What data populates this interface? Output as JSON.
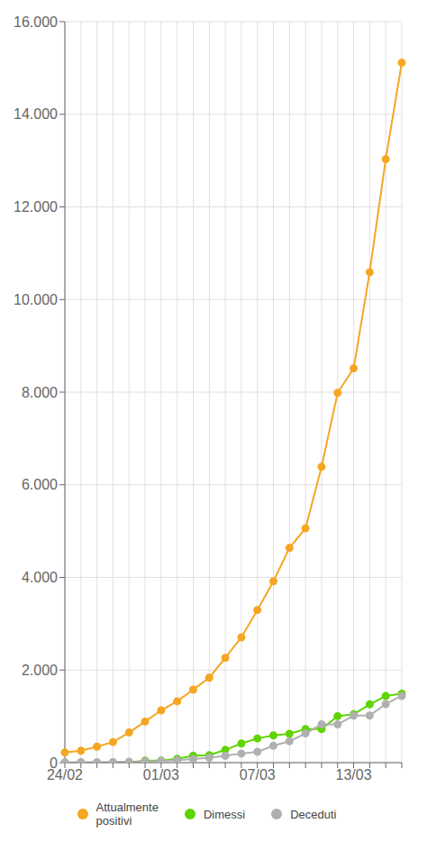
{
  "chart_data": {
    "type": "line",
    "categories": [
      "24/02",
      null,
      null,
      null,
      null,
      null,
      "01/03",
      null,
      null,
      null,
      null,
      null,
      "07/03",
      null,
      null,
      null,
      null,
      null,
      "13/03",
      null,
      null,
      null
    ],
    "series": [
      {
        "name": "Attualmente\npositivi",
        "color": "#f5a623",
        "marker": "circle",
        "values": [
          221,
          258,
          345,
          445,
          650,
          888,
          1128,
          1326,
          1577,
          1835,
          2263,
          2706,
          3296,
          3916,
          4636,
          5061,
          6387,
          7985,
          8514,
          10590,
          13030,
          15113
        ]
      },
      {
        "name": "Dimessi",
        "color": "#5fd400",
        "marker": "circle",
        "values": [
          1,
          1,
          1,
          1,
          1,
          45,
          46,
          83,
          149,
          160,
          276,
          414,
          523,
          589,
          622,
          724,
          724,
          1004,
          1045,
          1258,
          1439,
          1490
        ]
      },
      {
        "name": "Deceduti",
        "color": "#b0b0b0",
        "marker": "circle",
        "values": [
          7,
          10,
          12,
          17,
          21,
          29,
          34,
          52,
          79,
          107,
          148,
          197,
          233,
          366,
          463,
          631,
          827,
          827,
          1016,
          1016,
          1266,
          1441
        ]
      }
    ],
    "ylim": [
      0,
      16000
    ],
    "yticks": [
      0,
      {
        "value": 2000,
        "label": "2.000"
      },
      {
        "value": 4000,
        "label": "4.000"
      },
      {
        "value": 6000,
        "label": "6.000"
      },
      {
        "value": 8000,
        "label": "8.000"
      },
      {
        "value": 10000,
        "label": "10.000"
      },
      {
        "value": 12000,
        "label": "12.000"
      },
      {
        "value": 14000,
        "label": "14.000"
      },
      {
        "value": 16000,
        "label": "16.000"
      }
    ],
    "grid": true,
    "legend": "bottom"
  }
}
